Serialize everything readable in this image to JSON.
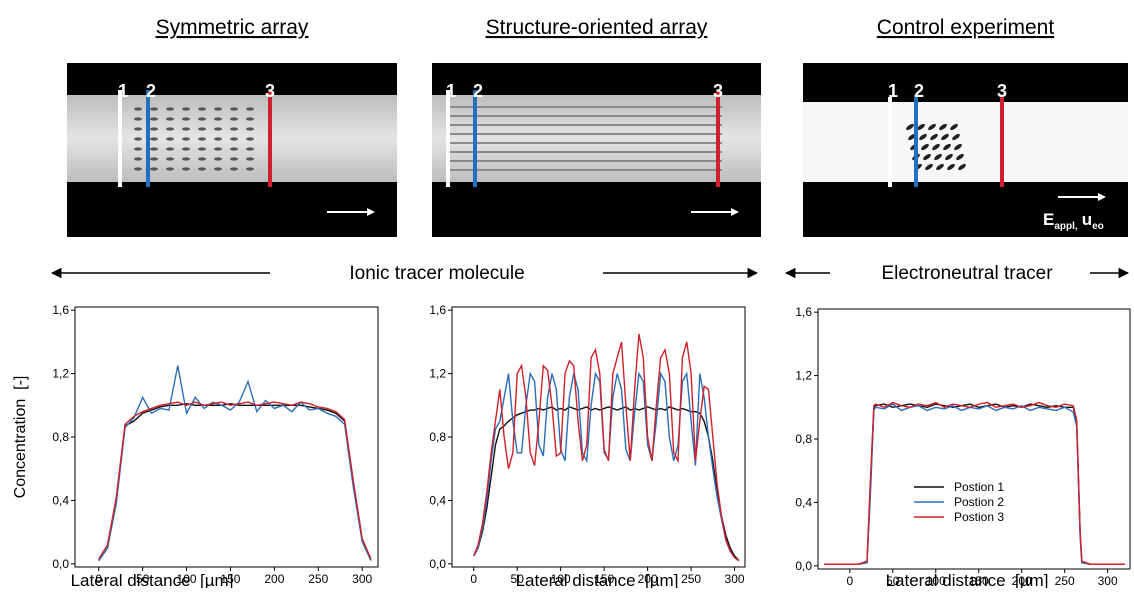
{
  "chart_data": [
    {
      "type": "line",
      "title": "Symmetric array",
      "xlabel": "Lateral distance  [µm]",
      "ylabel": "Concentration  [-]",
      "x": [
        0,
        10,
        20,
        30,
        40,
        50,
        60,
        70,
        80,
        90,
        100,
        110,
        120,
        130,
        140,
        150,
        160,
        170,
        180,
        190,
        200,
        210,
        220,
        230,
        240,
        250,
        260,
        270,
        280,
        290,
        300,
        310
      ],
      "series": [
        {
          "color": "#111111",
          "values": [
            0.02,
            0.1,
            0.4,
            0.87,
            0.9,
            0.95,
            0.97,
            0.99,
            1.0,
            1.0,
            1.01,
            1.0,
            1.0,
            1.0,
            1.0,
            1.01,
            1.0,
            1.0,
            1.0,
            1.0,
            1.0,
            1.0,
            1.0,
            1.0,
            0.99,
            0.98,
            0.97,
            0.95,
            0.9,
            0.5,
            0.15,
            0.03
          ]
        },
        {
          "color": "#2a6ebb",
          "values": [
            0.02,
            0.1,
            0.38,
            0.86,
            0.92,
            1.05,
            0.95,
            0.98,
            0.97,
            1.25,
            0.95,
            1.05,
            0.98,
            1.02,
            1.0,
            0.97,
            1.02,
            1.15,
            0.96,
            1.03,
            0.98,
            1.0,
            0.96,
            1.02,
            0.97,
            0.98,
            0.95,
            0.93,
            0.88,
            0.48,
            0.14,
            0.02
          ]
        },
        {
          "color": "#d0202a",
          "values": [
            0.03,
            0.12,
            0.42,
            0.88,
            0.93,
            0.96,
            0.98,
            1.0,
            1.01,
            1.02,
            1.0,
            1.02,
            1.0,
            1.01,
            1.02,
            1.0,
            1.01,
            1.02,
            1.0,
            1.01,
            1.02,
            1.01,
            1.0,
            1.02,
            1.01,
            0.99,
            0.98,
            0.96,
            0.91,
            0.52,
            0.16,
            0.03
          ]
        }
      ],
      "xlim": [
        -27,
        318
      ],
      "xticks": [
        0,
        50,
        100,
        150,
        200,
        250,
        300
      ],
      "ylim": [
        -0.02,
        1.62
      ],
      "yticks": [
        {
          "value": 0,
          "label": "0,0"
        },
        {
          "value": 0.4,
          "label": "0,4"
        },
        {
          "value": 0.8,
          "label": "0,8"
        },
        {
          "value": 1.2,
          "label": "1,2"
        },
        {
          "value": 1.6,
          "label": "1,6"
        }
      ]
    },
    {
      "type": "line",
      "title": "Structure-oriented array",
      "xlabel": "Lateral distance  [µm]",
      "x": [
        0,
        5,
        10,
        15,
        20,
        25,
        30,
        35,
        40,
        45,
        50,
        55,
        60,
        65,
        70,
        75,
        80,
        85,
        90,
        95,
        100,
        105,
        110,
        115,
        120,
        125,
        130,
        135,
        140,
        145,
        150,
        155,
        160,
        165,
        170,
        175,
        180,
        185,
        190,
        195,
        200,
        205,
        210,
        215,
        220,
        225,
        230,
        235,
        240,
        245,
        250,
        255,
        260,
        265,
        270,
        275,
        280,
        285,
        290,
        295,
        300,
        305
      ],
      "series": [
        {
          "color": "#111111",
          "values": [
            0.05,
            0.1,
            0.2,
            0.35,
            0.55,
            0.75,
            0.85,
            0.87,
            0.9,
            0.92,
            0.94,
            0.95,
            0.96,
            0.97,
            0.97,
            0.98,
            0.97,
            0.98,
            0.99,
            0.97,
            0.98,
            0.97,
            0.99,
            0.98,
            0.97,
            0.98,
            0.99,
            0.97,
            0.98,
            0.97,
            0.98,
            0.99,
            0.98,
            0.97,
            0.98,
            0.99,
            0.97,
            0.98,
            0.97,
            0.98,
            0.99,
            0.98,
            0.97,
            0.98,
            0.97,
            0.99,
            0.98,
            0.97,
            0.98,
            0.97,
            0.96,
            0.96,
            0.95,
            0.9,
            0.8,
            0.65,
            0.45,
            0.3,
            0.18,
            0.1,
            0.05,
            0.02
          ]
        },
        {
          "color": "#2a6ebb",
          "values": [
            0.05,
            0.1,
            0.22,
            0.4,
            0.65,
            0.85,
            0.9,
            1.05,
            1.2,
            0.9,
            0.7,
            0.7,
            1.0,
            1.2,
            1.15,
            0.75,
            0.68,
            1.05,
            1.2,
            1.1,
            0.72,
            0.65,
            1.05,
            1.2,
            1.1,
            0.7,
            0.65,
            1.0,
            1.2,
            1.15,
            0.7,
            0.66,
            1.05,
            1.2,
            1.1,
            0.72,
            0.65,
            0.95,
            1.2,
            1.15,
            0.75,
            0.65,
            0.9,
            1.2,
            1.15,
            0.8,
            0.65,
            0.75,
            1.15,
            1.2,
            0.9,
            0.62,
            1.2,
            1.05,
            0.8,
            0.6,
            0.42,
            0.28,
            0.15,
            0.08,
            0.04,
            0.02
          ]
        },
        {
          "color": "#d0202a",
          "values": [
            0.05,
            0.12,
            0.25,
            0.45,
            0.7,
            0.9,
            1.1,
            0.8,
            0.6,
            0.7,
            1.2,
            1.25,
            1.05,
            0.7,
            0.62,
            0.9,
            1.25,
            1.22,
            1.0,
            0.68,
            0.7,
            1.2,
            1.28,
            1.25,
            0.9,
            0.65,
            0.75,
            1.3,
            1.35,
            1.2,
            0.72,
            0.65,
            1.2,
            1.3,
            1.4,
            1.0,
            0.65,
            1.1,
            1.45,
            1.3,
            0.8,
            0.65,
            1.0,
            1.3,
            1.35,
            1.2,
            0.7,
            0.65,
            1.3,
            1.4,
            1.2,
            0.65,
            0.9,
            1.12,
            1.1,
            0.8,
            0.5,
            0.3,
            0.15,
            0.08,
            0.04,
            0.02
          ]
        }
      ],
      "xlim": [
        -25,
        312
      ],
      "xticks": [
        0,
        50,
        100,
        150,
        200,
        250,
        300
      ],
      "ylim": [
        -0.02,
        1.62
      ],
      "yticks": [
        {
          "value": 0,
          "label": "0,0"
        },
        {
          "value": 0.4,
          "label": "0,4"
        },
        {
          "value": 0.8,
          "label": "0,8"
        },
        {
          "value": 1.2,
          "label": "1,2"
        },
        {
          "value": 1.6,
          "label": "1,6"
        }
      ]
    },
    {
      "type": "line",
      "title": "Control experiment",
      "xlabel": "Lateral distance  [µm]",
      "legend": "lower center",
      "x": [
        -30,
        -20,
        -10,
        0,
        10,
        20,
        24,
        28,
        30,
        40,
        50,
        60,
        70,
        80,
        90,
        100,
        110,
        120,
        130,
        140,
        150,
        160,
        170,
        180,
        190,
        200,
        210,
        220,
        230,
        240,
        250,
        260,
        264,
        268,
        270,
        280,
        290,
        300,
        310,
        320
      ],
      "series": [
        {
          "name": "Postion 1",
          "color": "#111111",
          "values": [
            0.01,
            0.01,
            0.01,
            0.01,
            0.01,
            0.02,
            0.5,
            1.0,
            1.01,
            1.02,
            1.0,
            1.01,
            1.02,
            1.01,
            1.0,
            1.02,
            1.01,
            1.0,
            1.01,
            1.02,
            1.0,
            1.01,
            1.02,
            1.0,
            1.01,
            1.0,
            1.02,
            1.01,
            1.0,
            1.01,
            1.0,
            1.0,
            0.9,
            0.2,
            0.02,
            0.01,
            0.01,
            0.01,
            0.01,
            0.01
          ]
        },
        {
          "name": "Postion 2",
          "color": "#2a6ebb",
          "values": [
            0.01,
            0.01,
            0.01,
            0.01,
            0.01,
            0.02,
            0.45,
            0.98,
            1.0,
            0.99,
            1.02,
            0.98,
            1.0,
            1.01,
            0.98,
            1.0,
            0.99,
            1.01,
            0.98,
            1.0,
            0.99,
            1.01,
            0.98,
            1.0,
            0.99,
            1.01,
            0.98,
            1.0,
            0.99,
            0.98,
            1.0,
            0.97,
            0.88,
            0.18,
            0.02,
            0.01,
            0.01,
            0.01,
            0.01,
            0.01
          ]
        },
        {
          "name": "Postion 3",
          "color": "#d0202a",
          "values": [
            0.01,
            0.01,
            0.01,
            0.01,
            0.01,
            0.03,
            0.55,
            1.01,
            1.02,
            1.0,
            1.03,
            1.01,
            1.0,
            1.02,
            1.01,
            1.03,
            1.0,
            1.02,
            1.01,
            1.0,
            1.02,
            1.03,
            1.0,
            1.01,
            1.02,
            1.0,
            1.01,
            1.03,
            1.01,
            1.0,
            1.02,
            1.01,
            0.92,
            0.22,
            0.03,
            0.01,
            0.01,
            0.01,
            0.01,
            0.01
          ]
        }
      ],
      "xlim": [
        -37,
        326
      ],
      "xticks": [
        0,
        50,
        100,
        150,
        200,
        250,
        300
      ],
      "ylim": [
        -0.02,
        1.62
      ],
      "yticks": [
        {
          "value": 0,
          "label": "0,0"
        },
        {
          "value": 0.4,
          "label": "0,4"
        },
        {
          "value": 0.8,
          "label": "0,8"
        },
        {
          "value": 1.2,
          "label": "1,2"
        },
        {
          "value": 1.6,
          "label": "1,6"
        }
      ]
    }
  ],
  "images": [
    {
      "markers": [
        "1",
        "2",
        "3"
      ]
    },
    {
      "markers": [
        "1",
        "2",
        "3"
      ]
    },
    {
      "markers": [
        "1",
        "2",
        "3"
      ],
      "field_label": [
        "E",
        "appl,",
        "u",
        "eo"
      ]
    }
  ],
  "annotations": [
    "Ionic tracer molecule",
    "Electroneutral tracer"
  ]
}
